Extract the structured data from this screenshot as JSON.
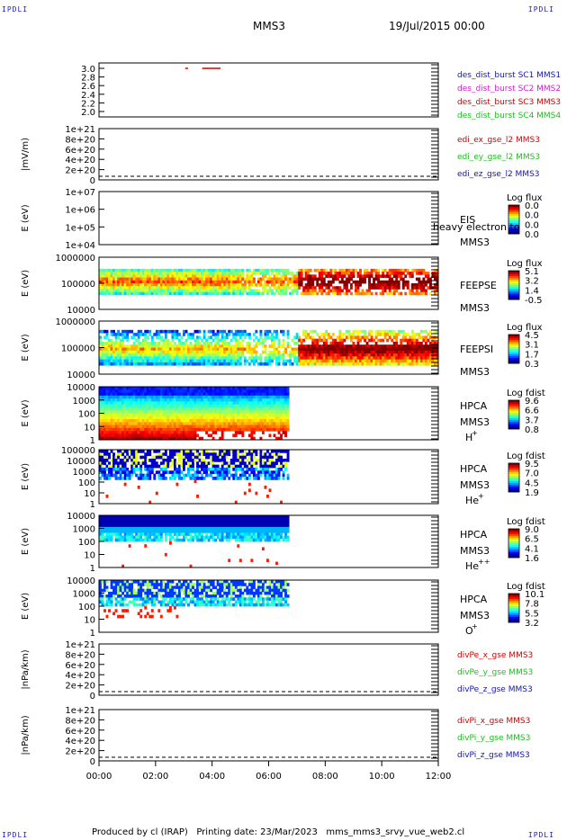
{
  "corners": {
    "tl": "IPDLI",
    "tr": "IPDLI",
    "bl": "IPDLI",
    "br": "IPDLI"
  },
  "header": {
    "spacecraft": "MMS3",
    "datetime": "19/Jul/2015 00:00"
  },
  "footer": {
    "text": "Produced by cl (IRAP)   Printing date: 23/Mar/2023   mms_mms3_srvy_vue_web2.cl"
  },
  "colors": {
    "red": "#d40000",
    "green": "#22bb22",
    "blue": "#1414b4",
    "magenta": "#cc22cc"
  },
  "chart_data": [
    {
      "type": "line",
      "ylabel": "",
      "yticks": [
        "3.0",
        "2.8",
        "2.6",
        "2.4",
        "2.2",
        "2.0"
      ],
      "legend": [
        {
          "label": "des_dist_burst SC1 MMS1",
          "color": "#1414b4"
        },
        {
          "label": "des_dist_burst SC2 MMS2",
          "color": "#cc22cc"
        },
        {
          "label": "des_dist_burst SC3 MMS3",
          "color": "#d40000"
        },
        {
          "label": "des_dist_burst SC4 MMS4",
          "color": "#22bb22"
        }
      ],
      "segments": [
        [
          3.05,
          3.15
        ],
        [
          3.65,
          4.3
        ]
      ],
      "segment_value": 3.0
    },
    {
      "type": "line",
      "ylabel": "|mV/m)",
      "yticks": [
        "1e+21",
        "8e+20",
        "6e+20",
        "4e+20",
        "2e+20",
        "0"
      ],
      "legend": [
        {
          "label": "edi_ex_gse_l2 MMS3",
          "color": "#d40000"
        },
        {
          "label": "edi_ey_gse_l2 MMS3",
          "color": "#22bb22"
        },
        {
          "label": "edi_ez_gse_l2 MMS3",
          "color": "#1414b4"
        }
      ]
    },
    {
      "type": "heatmap",
      "ylabel": "E (eV)",
      "yticks": [
        "1e+07",
        "1e+06",
        "1e+05",
        "1e+04"
      ],
      "name": "EIS",
      "spacecraft": "MMS3",
      "overlay": "heavy electron to",
      "cbar_title": "Log flux",
      "cbar_ticks": [
        "0.0",
        "0.0",
        "0.0",
        "0.0"
      ]
    },
    {
      "type": "heatmap",
      "ylabel": "E (eV)",
      "yticks": [
        "1000000",
        "100000",
        "10000"
      ],
      "name": "FEEPSE",
      "spacecraft": "MMS3",
      "cbar_title": "Log flux",
      "cbar_ticks": [
        "5.1",
        "3.2",
        "1.4",
        "-0.5"
      ]
    },
    {
      "type": "heatmap",
      "ylabel": "E (eV)",
      "yticks": [
        "1000000",
        "100000",
        "10000"
      ],
      "name": "FEEPSI",
      "spacecraft": "MMS3",
      "cbar_title": "Log flux",
      "cbar_ticks": [
        "4.5",
        "3.1",
        "1.7",
        "0.3"
      ]
    },
    {
      "type": "heatmap",
      "ylabel": "E (eV)",
      "yticks": [
        "10000",
        "1000",
        "100",
        "10",
        "1"
      ],
      "name": "HPCA",
      "spacecraft": "MMS3",
      "species": "H",
      "species_sup": "+",
      "cbar_title": "Log fdist",
      "cbar_ticks": [
        "9.6",
        "6.6",
        "3.7",
        "0.8"
      ]
    },
    {
      "type": "heatmap",
      "ylabel": "E (eV)",
      "yticks": [
        "100000",
        "10000",
        "1000",
        "100",
        "10",
        "1"
      ],
      "name": "HPCA",
      "spacecraft": "MMS3",
      "species": "He",
      "species_sup": "+",
      "cbar_title": "Log fdist",
      "cbar_ticks": [
        "9.5",
        "7.0",
        "4.5",
        "1.9"
      ]
    },
    {
      "type": "heatmap",
      "ylabel": "E (eV)",
      "yticks": [
        "10000",
        "1000",
        "100",
        "10",
        "1"
      ],
      "name": "HPCA",
      "spacecraft": "MMS3",
      "species": "He",
      "species_sup": "++",
      "cbar_title": "Log fdist",
      "cbar_ticks": [
        "9.0",
        "6.5",
        "4.1",
        "1.6"
      ]
    },
    {
      "type": "heatmap",
      "ylabel": "E (eV)",
      "yticks": [
        "10000",
        "1000",
        "100",
        "10",
        "1"
      ],
      "name": "HPCA",
      "spacecraft": "MMS3",
      "species": "O",
      "species_sup": "+",
      "cbar_title": "Log fdist",
      "cbar_ticks": [
        "10.1",
        "7.8",
        "5.5",
        "3.2"
      ]
    },
    {
      "type": "line",
      "ylabel": "|nPa/km)",
      "yticks": [
        "1e+21",
        "8e+20",
        "6e+20",
        "4e+20",
        "2e+20",
        "0"
      ],
      "legend": [
        {
          "label": "divPe_x_gse MMS3",
          "color": "#d40000"
        },
        {
          "label": "divPe_y_gse MMS3",
          "color": "#22bb22"
        },
        {
          "label": "divPe_z_gse MMS3",
          "color": "#1414b4"
        }
      ]
    },
    {
      "type": "line",
      "ylabel": "|nPa/km)",
      "yticks": [
        "1e+21",
        "8e+20",
        "6e+20",
        "4e+20",
        "2e+20",
        "0"
      ],
      "legend": [
        {
          "label": "divPi_x_gse MMS3",
          "color": "#d40000"
        },
        {
          "label": "divPi_y_gse MMS3",
          "color": "#22bb22"
        },
        {
          "label": "divPi_z_gse MMS3",
          "color": "#1414b4"
        }
      ]
    }
  ],
  "xaxis": {
    "ticks": [
      "00:00",
      "02:00",
      "04:00",
      "06:00",
      "08:00",
      "10:00",
      "12:00"
    ],
    "range_hours": [
      0,
      12
    ]
  }
}
